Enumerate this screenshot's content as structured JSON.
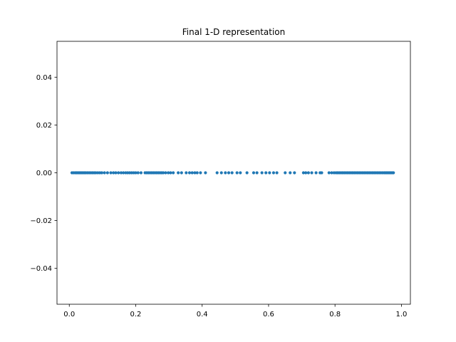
{
  "chart_data": {
    "type": "scatter",
    "title": "Final 1-D representation",
    "xlabel": "",
    "ylabel": "",
    "xlim": [
      -0.037,
      1.027
    ],
    "ylim": [
      -0.055,
      0.055
    ],
    "x_ticks": [
      0.0,
      0.2,
      0.4,
      0.6,
      0.8,
      1.0
    ],
    "x_tick_labels": [
      "0.0",
      "0.2",
      "0.4",
      "0.6",
      "0.8",
      "1.0"
    ],
    "y_ticks": [
      0.04,
      0.02,
      0.0,
      -0.02,
      -0.04
    ],
    "y_tick_labels": [
      "0.04",
      "0.02",
      "0.00",
      "−0.02",
      "−0.04"
    ],
    "grid": false,
    "marker_color": "#1f77b4",
    "series": [
      {
        "y": 0.0,
        "x": [
          0.008,
          0.013,
          0.018,
          0.022,
          0.026,
          0.03,
          0.034,
          0.038,
          0.042,
          0.046,
          0.05,
          0.055,
          0.06,
          0.065,
          0.07,
          0.075,
          0.08,
          0.086,
          0.092,
          0.098,
          0.106,
          0.115,
          0.125,
          0.133,
          0.14,
          0.148,
          0.156,
          0.163,
          0.17,
          0.176,
          0.182,
          0.188,
          0.194,
          0.2,
          0.207,
          0.216,
          0.228,
          0.233,
          0.238,
          0.243,
          0.248,
          0.253,
          0.258,
          0.263,
          0.268,
          0.273,
          0.278,
          0.283,
          0.29,
          0.298,
          0.305,
          0.313,
          0.328,
          0.338,
          0.352,
          0.362,
          0.37,
          0.378,
          0.385,
          0.395,
          0.41,
          0.445,
          0.458,
          0.47,
          0.48,
          0.49,
          0.505,
          0.515,
          0.535,
          0.555,
          0.565,
          0.58,
          0.592,
          0.603,
          0.615,
          0.625,
          0.65,
          0.665,
          0.678,
          0.705,
          0.712,
          0.72,
          0.73,
          0.743,
          0.755,
          0.76,
          0.782,
          0.79,
          0.797,
          0.803,
          0.808,
          0.813,
          0.818,
          0.823,
          0.828,
          0.833,
          0.838,
          0.843,
          0.848,
          0.853,
          0.858,
          0.863,
          0.868,
          0.873,
          0.878,
          0.883,
          0.888,
          0.893,
          0.898,
          0.903,
          0.908,
          0.913,
          0.918,
          0.923,
          0.928,
          0.933,
          0.938,
          0.943,
          0.948,
          0.952,
          0.956,
          0.96,
          0.964,
          0.968,
          0.972,
          0.976
        ]
      }
    ]
  }
}
